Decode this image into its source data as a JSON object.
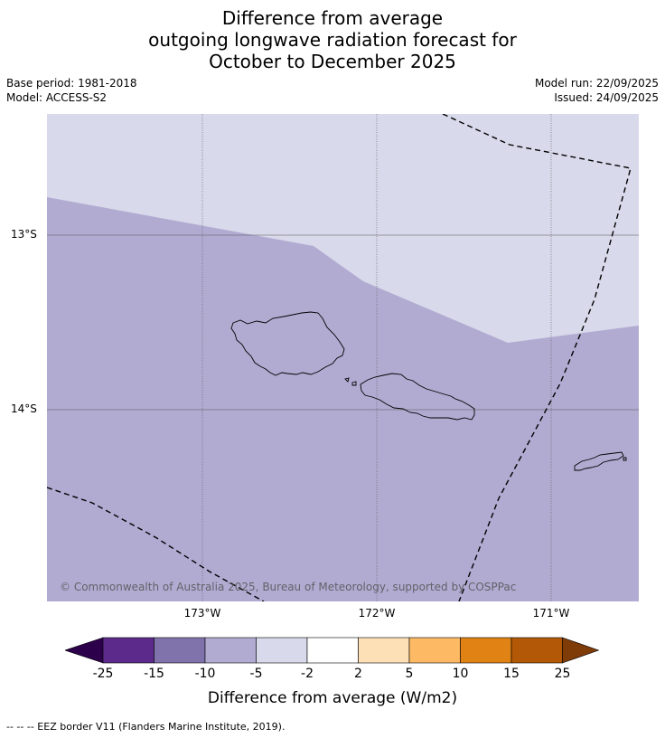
{
  "title": {
    "line1": "Difference from average",
    "line2": "outgoing longwave radiation forecast for",
    "line3": "October to December 2025"
  },
  "meta": {
    "base_period": "Base period: 1981-2018",
    "model": "Model: ACCESS-S2",
    "model_run": "Model run: 22/09/2025",
    "issued": "Issued: 24/09/2025"
  },
  "map": {
    "lat_labels": [
      "13°S",
      "14°S"
    ],
    "lon_labels": [
      "173°W",
      "172°W",
      "171°W"
    ],
    "copyright": "© Commonwealth of Australia 2025, Bureau of Meteorology, supported by COSPPac",
    "colors": {
      "light_category": "#d8d9ea",
      "mid_category": "#b1abd2",
      "grid": "#555555",
      "coast": "#000000",
      "eez": "#000000"
    },
    "categories_shown": [
      "-5 to -2",
      "-10 to -5"
    ]
  },
  "colorbar": {
    "ticks": [
      "-25",
      "-15",
      "-10",
      "-5",
      "-2",
      "2",
      "5",
      "10",
      "15",
      "25"
    ],
    "colors": [
      "#2d004b",
      "#5b2a8b",
      "#8073ac",
      "#b1abd2",
      "#d8d9ea",
      "#ffffff",
      "#fde0b6",
      "#fdb963",
      "#e08214",
      "#b35806",
      "#7f3b08"
    ],
    "label": "Difference from average (W/m2)"
  },
  "footnote": "--  --  -- EEZ border V11 (Flanders Marine Institute, 2019)."
}
